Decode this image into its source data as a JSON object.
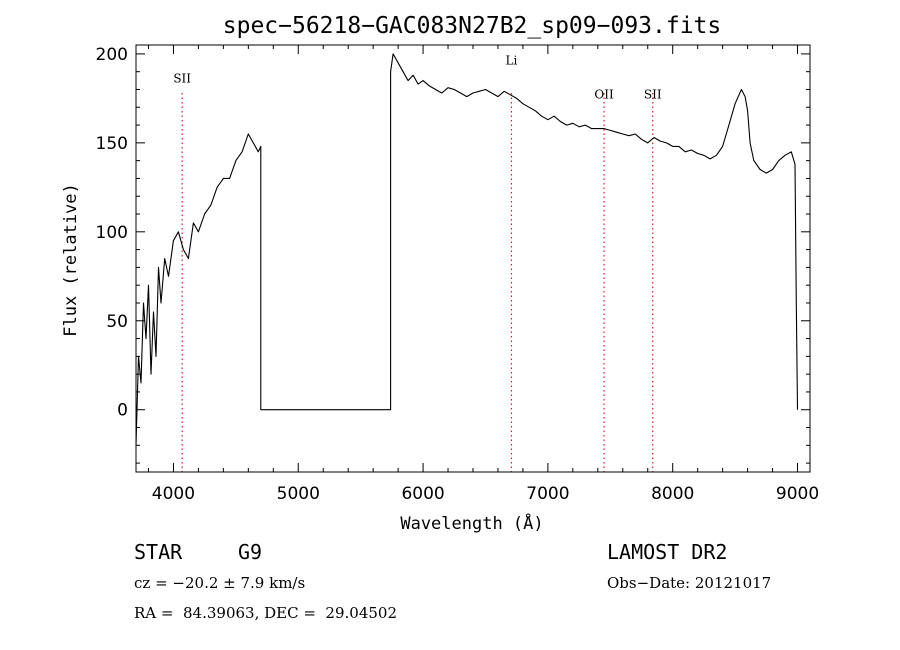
{
  "chart_data": {
    "type": "line",
    "title": "spec−56218−GAC083N27B2_sp09−093.fits",
    "xlabel": "Wavelength (Å)",
    "ylabel": "Flux (relative)",
    "xlim": [
      3700,
      9100
    ],
    "ylim": [
      -35,
      205
    ],
    "xticks": [
      4000,
      5000,
      6000,
      7000,
      8000,
      9000
    ],
    "yticks": [
      0,
      50,
      100,
      150,
      200
    ],
    "grid": false,
    "line_color": "#000000",
    "marker_color": "#d62020",
    "series": [
      {
        "x": [
          3700,
          3720,
          3740,
          3760,
          3780,
          3800,
          3820,
          3840,
          3860,
          3880,
          3900,
          3930,
          3960,
          4000,
          4040,
          4080,
          4120,
          4160,
          4200,
          4250,
          4300,
          4350,
          4400,
          4450,
          4500,
          4550,
          4600,
          4640,
          4680,
          4700,
          4700,
          5740,
          5740,
          5760,
          5800,
          5840,
          5880,
          5920,
          5960,
          6000,
          6050,
          6100,
          6150,
          6200,
          6250,
          6300,
          6350,
          6400,
          6450,
          6500,
          6550,
          6600,
          6650,
          6700,
          6750,
          6800,
          6850,
          6900,
          6950,
          7000,
          7050,
          7100,
          7150,
          7200,
          7250,
          7300,
          7350,
          7400,
          7450,
          7500,
          7550,
          7600,
          7650,
          7700,
          7750,
          7800,
          7850,
          7900,
          7950,
          8000,
          8050,
          8100,
          8150,
          8200,
          8250,
          8300,
          8350,
          8400,
          8450,
          8500,
          8550,
          8580,
          8600,
          8620,
          8650,
          8700,
          8750,
          8800,
          8850,
          8900,
          8950,
          8980,
          8990,
          9000
        ],
        "y": [
          -20,
          30,
          15,
          60,
          40,
          70,
          20,
          55,
          30,
          80,
          60,
          85,
          75,
          95,
          100,
          90,
          85,
          105,
          100,
          110,
          115,
          125,
          130,
          130,
          140,
          145,
          155,
          150,
          145,
          148,
          0,
          0,
          190,
          200,
          195,
          190,
          185,
          188,
          183,
          185,
          182,
          180,
          178,
          181,
          180,
          178,
          176,
          178,
          179,
          180,
          178,
          176,
          179,
          177,
          175,
          172,
          170,
          168,
          165,
          163,
          165,
          162,
          160,
          161,
          159,
          160,
          158,
          158,
          158,
          157,
          156,
          155,
          154,
          155,
          152,
          150,
          153,
          151,
          150,
          148,
          148,
          145,
          146,
          144,
          143,
          141,
          143,
          148,
          160,
          172,
          180,
          176,
          168,
          150,
          140,
          135,
          133,
          135,
          140,
          143,
          145,
          138,
          60,
          0
        ]
      }
    ],
    "lines": [
      {
        "label": "SII",
        "x": 4070
      },
      {
        "label": "Li",
        "x": 6708
      },
      {
        "label": "OII",
        "x": 7450
      },
      {
        "label": "SII",
        "x": 7840
      }
    ]
  },
  "info": {
    "object_type": "STAR",
    "subclass": "G9",
    "survey": "LAMOST DR2",
    "velocity": "cz = −20.2 ± 7.9 km/s",
    "obs_date": "Obs−Date: 20121017",
    "coords": "RA =  84.39063, DEC =  29.04502"
  }
}
